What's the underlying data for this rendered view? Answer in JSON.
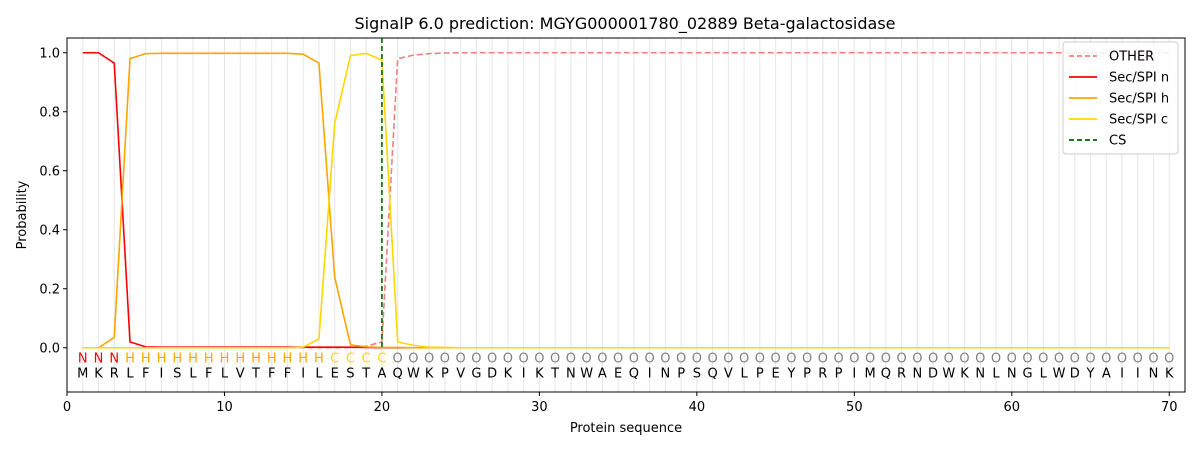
{
  "chart_data": {
    "type": "line",
    "title": "SignalP 6.0 prediction: MGYG000001780_02889 Beta-galactosidase",
    "xlabel": "Protein sequence",
    "ylabel": "Probability",
    "xlim": [
      0,
      71
    ],
    "ylim": [
      -0.15,
      1.05
    ],
    "x_ticks": [
      0,
      10,
      20,
      30,
      40,
      50,
      60,
      70
    ],
    "y_ticks": [
      0.0,
      0.2,
      0.4,
      0.6,
      0.8,
      1.0
    ],
    "x_tick_labels": [
      "0",
      "10",
      "20",
      "30",
      "40",
      "50",
      "60",
      "70"
    ],
    "y_tick_labels": [
      "0.0",
      "0.2",
      "0.4",
      "0.6",
      "0.8",
      "1.0"
    ],
    "grid": "vertical lines at each residue",
    "legend_position": "top-right",
    "sequence": [
      "M",
      "K",
      "R",
      "L",
      "F",
      "I",
      "S",
      "L",
      "F",
      "L",
      "V",
      "T",
      "F",
      "F",
      "I",
      "L",
      "E",
      "S",
      "T",
      "A",
      "Q",
      "W",
      "K",
      "P",
      "V",
      "G",
      "D",
      "K",
      "I",
      "K",
      "T",
      "N",
      "W",
      "A",
      "E",
      "Q",
      "I",
      "N",
      "P",
      "S",
      "Q",
      "V",
      "L",
      "P",
      "E",
      "Y",
      "P",
      "R",
      "P",
      "I",
      "M",
      "Q",
      "R",
      "N",
      "D",
      "W",
      "K",
      "N",
      "L",
      "N",
      "G",
      "L",
      "W",
      "D",
      "Y",
      "A",
      "I",
      "I",
      "N",
      "K"
    ],
    "region_labels": [
      "N",
      "N",
      "N",
      "H",
      "H",
      "H",
      "H",
      "H",
      "H",
      "H",
      "H",
      "H",
      "H",
      "H",
      "H",
      "H",
      "C",
      "C",
      "C",
      "C",
      "O",
      "O",
      "O",
      "O",
      "O",
      "O",
      "O",
      "O",
      "O",
      "O",
      "O",
      "O",
      "O",
      "O",
      "O",
      "O",
      "O",
      "O",
      "O",
      "O",
      "O",
      "O",
      "O",
      "O",
      "O",
      "O",
      "O",
      "O",
      "O",
      "O",
      "O",
      "O",
      "O",
      "O",
      "O",
      "O",
      "O",
      "O",
      "O",
      "O",
      "O",
      "O",
      "O",
      "O",
      "O",
      "O",
      "O",
      "O",
      "O",
      "O"
    ],
    "region_colors": {
      "N": "#ff0000",
      "H": "#ffa500",
      "C": "#ffd700",
      "O": "#808080"
    },
    "series": [
      {
        "name": "OTHER",
        "color": "#f08080",
        "dashed": true,
        "values": [
          0.0,
          0.0,
          0.0,
          0.0,
          0.0,
          0.0,
          0.0,
          0.0,
          0.0,
          0.0,
          0.0,
          0.0,
          0.0,
          0.0,
          0.0,
          0.0,
          0.0,
          0.0,
          0.005,
          0.02,
          0.98,
          0.992,
          0.997,
          0.999,
          1.0,
          1.0,
          1.0,
          1.0,
          1.0,
          1.0,
          1.0,
          1.0,
          1.0,
          1.0,
          1.0,
          1.0,
          1.0,
          1.0,
          1.0,
          1.0,
          1.0,
          1.0,
          1.0,
          1.0,
          1.0,
          1.0,
          1.0,
          1.0,
          1.0,
          1.0,
          1.0,
          1.0,
          1.0,
          1.0,
          1.0,
          1.0,
          1.0,
          1.0,
          1.0,
          1.0,
          1.0,
          1.0,
          1.0,
          1.0,
          1.0,
          1.0,
          1.0,
          1.0,
          1.0,
          1.0
        ]
      },
      {
        "name": "Sec/SPI n",
        "color": "#ff0000",
        "dashed": false,
        "values": [
          1.0,
          1.0,
          0.965,
          0.02,
          0.003,
          0.002,
          0.002,
          0.002,
          0.002,
          0.002,
          0.002,
          0.002,
          0.002,
          0.002,
          0.002,
          0.002,
          0.002,
          0.002,
          0.001,
          0.0,
          0.0,
          0.0,
          0.0,
          0.0,
          0.0,
          0.0,
          0.0,
          0.0,
          0.0,
          0.0,
          0.0,
          0.0,
          0.0,
          0.0,
          0.0,
          0.0,
          0.0,
          0.0,
          0.0,
          0.0,
          0.0,
          0.0,
          0.0,
          0.0,
          0.0,
          0.0,
          0.0,
          0.0,
          0.0,
          0.0,
          0.0,
          0.0,
          0.0,
          0.0,
          0.0,
          0.0,
          0.0,
          0.0,
          0.0,
          0.0,
          0.0,
          0.0,
          0.0,
          0.0,
          0.0,
          0.0,
          0.0,
          0.0,
          0.0,
          0.0
        ]
      },
      {
        "name": "Sec/SPI h",
        "color": "#ffa500",
        "dashed": false,
        "values": [
          0.0,
          0.0,
          0.035,
          0.98,
          0.997,
          0.998,
          0.998,
          0.998,
          0.998,
          0.998,
          0.998,
          0.998,
          0.998,
          0.998,
          0.995,
          0.965,
          0.24,
          0.01,
          0.003,
          0.001,
          0.001,
          0.0,
          0.0,
          0.0,
          0.0,
          0.0,
          0.0,
          0.0,
          0.0,
          0.0,
          0.0,
          0.0,
          0.0,
          0.0,
          0.0,
          0.0,
          0.0,
          0.0,
          0.0,
          0.0,
          0.0,
          0.0,
          0.0,
          0.0,
          0.0,
          0.0,
          0.0,
          0.0,
          0.0,
          0.0,
          0.0,
          0.0,
          0.0,
          0.0,
          0.0,
          0.0,
          0.0,
          0.0,
          0.0,
          0.0,
          0.0,
          0.0,
          0.0,
          0.0,
          0.0,
          0.0,
          0.0,
          0.0,
          0.0,
          0.0
        ]
      },
      {
        "name": "Sec/SPI c",
        "color": "#ffd700",
        "dashed": false,
        "values": [
          0.0,
          0.0,
          0.0,
          0.0,
          0.0,
          0.0,
          0.0,
          0.0,
          0.0,
          0.0,
          0.0,
          0.0,
          0.0,
          0.0,
          0.002,
          0.03,
          0.76,
          0.99,
          0.998,
          0.975,
          0.02,
          0.008,
          0.002,
          0.001,
          0.0,
          0.0,
          0.0,
          0.0,
          0.0,
          0.0,
          0.0,
          0.0,
          0.0,
          0.0,
          0.0,
          0.0,
          0.0,
          0.0,
          0.0,
          0.0,
          0.0,
          0.0,
          0.0,
          0.0,
          0.0,
          0.0,
          0.0,
          0.0,
          0.0,
          0.0,
          0.0,
          0.0,
          0.0,
          0.0,
          0.0,
          0.0,
          0.0,
          0.0,
          0.0,
          0.0,
          0.0,
          0.0,
          0.0,
          0.0,
          0.0,
          0.0,
          0.0,
          0.0,
          0.0,
          0.0
        ]
      }
    ],
    "cleavage_site": {
      "name": "CS",
      "x": 20,
      "color": "#006400",
      "dashed": true
    }
  }
}
